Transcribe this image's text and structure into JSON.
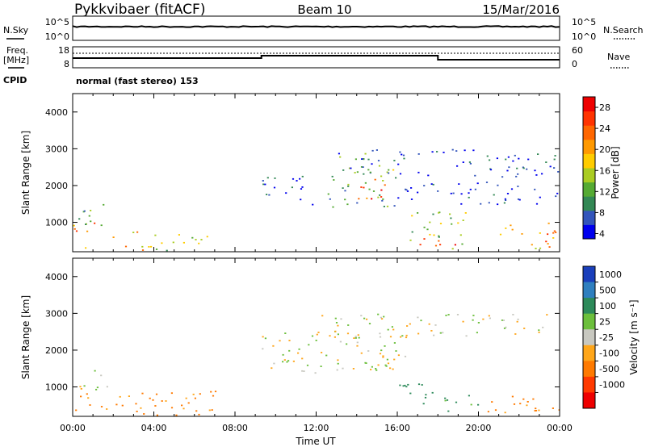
{
  "header": {
    "station": "Pykkvibaer (fitACF)",
    "beam": "Beam 10",
    "date": "15/Mar/2016"
  },
  "strips": {
    "nsky": {
      "left_label": "N.Sky",
      "right_label": "N.Search",
      "left_ticks": [
        "10^5",
        "10^0"
      ],
      "right_ticks": [
        "10^5",
        "10^0"
      ]
    },
    "freq": {
      "left_label_1": "Freq.",
      "left_label_2": "[MHz]",
      "right_label": "Nave",
      "left_ticks": [
        "18",
        "8"
      ],
      "right_ticks": [
        "60",
        "0"
      ]
    },
    "cpid": {
      "label": "CPID",
      "value": "normal (fast stereo) 153"
    }
  },
  "axes": {
    "ylabel": "Slant Range [km]",
    "yticks": [
      "1000",
      "2000",
      "3000",
      "4000"
    ],
    "xticks": [
      "00:00",
      "04:00",
      "08:00",
      "12:00",
      "16:00",
      "20:00",
      "00:00"
    ],
    "xlabel": "Time UT"
  },
  "colorbars": {
    "power": {
      "label": "Power [dB]",
      "ticks": [
        "4",
        "8",
        "12",
        "16",
        "20",
        "24",
        "28"
      ],
      "colors": [
        "#0000ee",
        "#3355bb",
        "#338855",
        "#55aa33",
        "#aacc22",
        "#ffcc00",
        "#ff9900",
        "#ff6600",
        "#ff3300",
        "#ee0000"
      ]
    },
    "velocity": {
      "label": "Velocity [m s⁻¹]",
      "ticks": [
        "1000",
        "500",
        "100",
        "25",
        "-25",
        "-100",
        "-500",
        "-1000"
      ],
      "colors": [
        "#1a3fbb",
        "#2f7fbf",
        "#2d8a5a",
        "#6cbf3c",
        "#c8c8c0",
        "#ffa61a",
        "#ff7a00",
        "#ff3a00",
        "#ee0000"
      ]
    }
  },
  "chart_data": [
    {
      "type": "heatmap",
      "title": "Power",
      "xlabel": "Time UT",
      "ylabel": "Slant Range [km]",
      "xlim": [
        0,
        24
      ],
      "ylim": [
        200,
        4500
      ],
      "value_unit": "dB",
      "value_range": [
        3,
        30
      ],
      "regions": [
        {
          "t": [
            0.0,
            1.2
          ],
          "range": [
            300,
            1000
          ],
          "value": 22
        },
        {
          "t": [
            0.0,
            1.5
          ],
          "range": [
            800,
            1500
          ],
          "value": 12
        },
        {
          "t": [
            1.5,
            3.5
          ],
          "range": [
            250,
            800
          ],
          "value": 20
        },
        {
          "t": [
            3.5,
            7.0
          ],
          "range": [
            250,
            700
          ],
          "value": 14
        },
        {
          "t": [
            9.3,
            12.0
          ],
          "range": [
            1500,
            2300
          ],
          "value": 6
        },
        {
          "t": [
            12.0,
            16.0
          ],
          "range": [
            1400,
            2600
          ],
          "value": 12
        },
        {
          "t": [
            14.0,
            15.5
          ],
          "range": [
            1600,
            2200
          ],
          "value": 24
        },
        {
          "t": [
            13.0,
            16.0
          ],
          "range": [
            2300,
            3000
          ],
          "value": 9
        },
        {
          "t": [
            16.0,
            24.0
          ],
          "range": [
            1500,
            3000
          ],
          "value": 6
        },
        {
          "t": [
            16.5,
            19.5
          ],
          "range": [
            300,
            1300
          ],
          "value": 14
        },
        {
          "t": [
            17.0,
            19.0
          ],
          "range": [
            250,
            600
          ],
          "value": 26
        },
        {
          "t": [
            21.0,
            24.0
          ],
          "range": [
            300,
            1000
          ],
          "value": 20
        }
      ]
    },
    {
      "type": "heatmap",
      "title": "Velocity",
      "xlabel": "Time UT",
      "ylabel": "Slant Range [km]",
      "xlim": [
        0,
        24
      ],
      "ylim": [
        200,
        4500
      ],
      "value_unit": "m s^-1",
      "value_range": [
        -1000,
        1000
      ],
      "regions": [
        {
          "t": [
            0.0,
            7.0
          ],
          "range": [
            250,
            900
          ],
          "value": -150
        },
        {
          "t": [
            0.0,
            2.0
          ],
          "range": [
            900,
            1500
          ],
          "value": 0
        },
        {
          "t": [
            9.3,
            16.5
          ],
          "range": [
            1400,
            2600
          ],
          "value": 0
        },
        {
          "t": [
            12.0,
            24.0
          ],
          "range": [
            2400,
            3000
          ],
          "value": 0
        },
        {
          "t": [
            16.0,
            18.0
          ],
          "range": [
            400,
            1200
          ],
          "value": 300
        },
        {
          "t": [
            18.0,
            20.0
          ],
          "range": [
            300,
            800
          ],
          "value": 150
        },
        {
          "t": [
            20.0,
            24.0
          ],
          "range": [
            300,
            800
          ],
          "value": -150
        }
      ]
    }
  ]
}
